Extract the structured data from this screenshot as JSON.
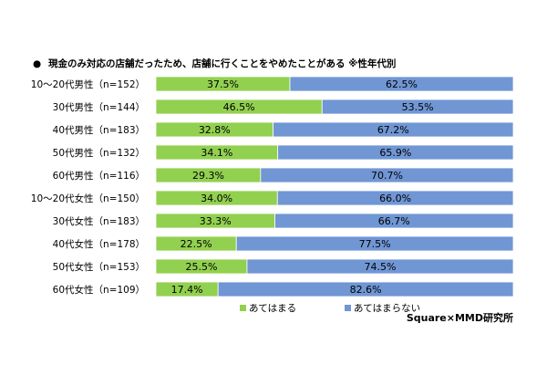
{
  "chart_data": {
    "type": "bar",
    "orientation": "horizontal",
    "stacked": "percent",
    "title_bullet": "●",
    "title": "現金のみ対応の店舗だったため、店舗に行くことをやめたことがある ※性年代別",
    "categories": [
      "10～20代男性（n=152）",
      "30代男性（n=144）",
      "40代男性（n=183）",
      "50代男性（n=132）",
      "60代男性（n=116）",
      "10～20代女性（n=150）",
      "30代女性（n=183）",
      "40代女性（n=178）",
      "50代女性（n=153）",
      "60代女性（n=109）"
    ],
    "series": [
      {
        "name": "あてはまる",
        "color": "#92d050",
        "values": [
          37.5,
          46.5,
          32.8,
          34.1,
          29.3,
          34.0,
          33.3,
          22.5,
          25.5,
          17.4
        ],
        "labels": [
          "37.5%",
          "46.5%",
          "32.8%",
          "34.1%",
          "29.3%",
          "34.0%",
          "33.3%",
          "22.5%",
          "25.5%",
          "17.4%"
        ]
      },
      {
        "name": "あてはまらない",
        "color": "#7096d4",
        "values": [
          62.5,
          53.5,
          67.2,
          65.9,
          70.7,
          66.0,
          66.7,
          77.5,
          74.5,
          82.6
        ],
        "labels": [
          "62.5%",
          "53.5%",
          "67.2%",
          "65.9%",
          "70.7%",
          "66.0%",
          "66.7%",
          "77.5%",
          "74.5%",
          "82.6%"
        ]
      }
    ],
    "xlim": [
      0,
      100
    ],
    "grid": false,
    "legend_position": "bottom",
    "source": "Square×MMD研究所"
  }
}
